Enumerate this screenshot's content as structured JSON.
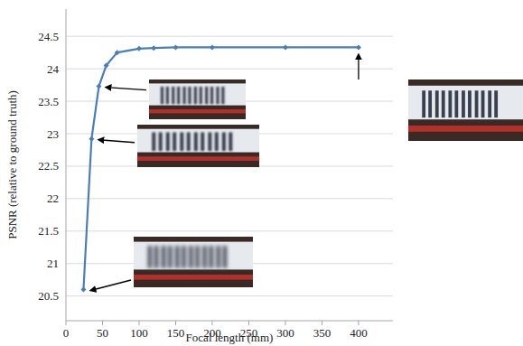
{
  "chart_data": {
    "type": "line",
    "x_label": "Focal length (mm)",
    "y_label": "PSNR (relative to ground truth)",
    "x": [
      24,
      35,
      45,
      55,
      70,
      100,
      120,
      150,
      200,
      300,
      400
    ],
    "values": [
      20.6,
      22.92,
      23.73,
      24.05,
      24.25,
      24.31,
      24.32,
      24.33,
      24.33,
      24.33,
      24.33
    ],
    "color": "#4a7ebb",
    "marker": "diamond",
    "xlim": [
      0,
      447
    ],
    "ylim": [
      20.12,
      24.92
    ],
    "xticks": [
      0,
      50,
      100,
      150,
      200,
      250,
      300,
      350,
      400
    ],
    "yticks": [
      20.5,
      21,
      21.5,
      22,
      22.5,
      23,
      23.5,
      24,
      24.5
    ],
    "grid": true
  }
}
